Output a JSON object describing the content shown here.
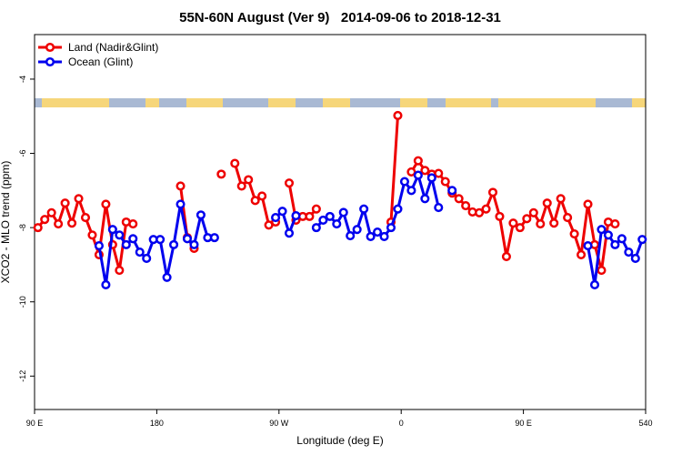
{
  "chart_data": {
    "type": "line",
    "title": "55N-60N August (Ver 9)   2014-09-06 to 2018-12-31",
    "x_label": "Longitude (deg E)",
    "y_label": "XCO2 - MLO trend (ppm)",
    "x": [
      92.5,
      97.5,
      102.5,
      107.5,
      112.5,
      117.5,
      122.5,
      127.5,
      132.5,
      137.5,
      142.5,
      147.5,
      152.5,
      157.5,
      162.5,
      167.5,
      172.5,
      177.5,
      182.5,
      187.5,
      192.5,
      197.5,
      202.5,
      207.5,
      212.5,
      217.5,
      222.5,
      227.5,
      232.5,
      237.5,
      242.5,
      247.5,
      252.5,
      257.5,
      262.5,
      267.5,
      272.5,
      277.5,
      282.5,
      287.5,
      292.5,
      297.5,
      302.5,
      307.5,
      312.5,
      317.5,
      322.5,
      327.5,
      332.5,
      337.5,
      342.5,
      347.5,
      352.5,
      357.5,
      362.5,
      367.5,
      372.5,
      377.5,
      382.5,
      387.5,
      392.5,
      397.5,
      402.5,
      407.5,
      412.5,
      417.5,
      422.5,
      427.5,
      432.5,
      437.5,
      442.5,
      447.5,
      452.5,
      457.5,
      462.5,
      467.5,
      472.5,
      477.5,
      482.5,
      487.5,
      492.5,
      497.5,
      502.5,
      507.5,
      512.5,
      517.5,
      522.5,
      527.5,
      532.5,
      537.5
    ],
    "series": [
      {
        "name": "Land (Nadir&Glint)",
        "color": "#ee0000",
        "values": [
          -8.0,
          -7.78,
          -7.6,
          -7.9,
          -7.34,
          -7.88,
          -7.22,
          -7.73,
          -8.2,
          -8.73,
          -7.37,
          -8.46,
          -9.15,
          -7.85,
          -7.9,
          null,
          null,
          null,
          null,
          null,
          null,
          -6.88,
          -8.27,
          -8.56,
          null,
          null,
          null,
          -6.56,
          null,
          -6.27,
          -6.88,
          -6.71,
          -7.27,
          -7.15,
          -7.93,
          -7.85,
          null,
          -6.8,
          -7.8,
          -7.7,
          -7.7,
          -7.5,
          null,
          null,
          null,
          null,
          null,
          null,
          null,
          null,
          null,
          null,
          -7.85,
          -4.98,
          null,
          -6.5,
          -6.2,
          -6.46,
          -6.56,
          -6.54,
          -6.76,
          -7.07,
          -7.22,
          -7.41,
          -7.58,
          -7.6,
          -7.5,
          -7.05,
          -7.7,
          -8.78,
          -7.88,
          -8.0,
          -7.76,
          -7.6,
          -7.9,
          -7.34,
          -7.88,
          -7.22,
          -7.73,
          -8.17,
          -8.73,
          -7.37,
          -8.46,
          -9.15,
          -7.85,
          -7.9,
          null,
          null,
          null,
          null
        ]
      },
      {
        "name": "Ocean (Glint)",
        "color": "#0000ee",
        "values": [
          null,
          null,
          null,
          null,
          null,
          null,
          null,
          null,
          null,
          -8.49,
          -9.54,
          -8.05,
          -8.2,
          -8.46,
          -8.3,
          -8.66,
          -8.83,
          -8.32,
          -8.32,
          -9.34,
          -8.46,
          -7.37,
          -8.3,
          -8.46,
          -7.66,
          -8.27,
          -8.27,
          null,
          null,
          null,
          null,
          null,
          null,
          null,
          null,
          -7.73,
          -7.56,
          -8.15,
          -7.68,
          null,
          null,
          -8.0,
          -7.8,
          -7.7,
          -7.9,
          -7.59,
          -8.22,
          -8.05,
          -7.5,
          -8.24,
          -8.12,
          -8.24,
          -8.0,
          -7.5,
          -6.76,
          -7.0,
          -6.59,
          -7.22,
          -6.66,
          -7.46,
          null,
          -7.0,
          null,
          null,
          null,
          null,
          null,
          null,
          null,
          null,
          null,
          null,
          null,
          null,
          null,
          null,
          null,
          null,
          null,
          null,
          null,
          -8.49,
          -9.54,
          -8.05,
          -8.2,
          -8.46,
          -8.3,
          -8.66,
          -8.83,
          -8.32
        ]
      }
    ],
    "xlim": [
      90,
      540
    ],
    "xticks": [
      {
        "value": 90,
        "label": "90 E"
      },
      180,
      {
        "value": 270,
        "label": "90 W"
      },
      {
        "value": 360,
        "label": "0"
      },
      {
        "value": 450,
        "label": "90 E"
      },
      540
    ],
    "ylim": [
      -12.9,
      -2.8
    ],
    "yticks": [
      -4,
      -6,
      -8,
      -10,
      -12
    ],
    "legend": "top-left"
  }
}
